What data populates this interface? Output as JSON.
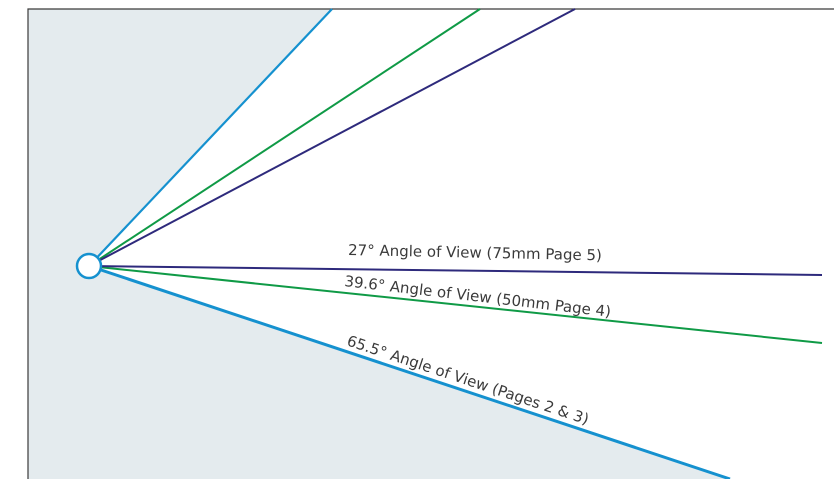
{
  "diagram": {
    "colors": {
      "background_region": "#e4ebee",
      "frame": "#3a3a3a",
      "angle_65": "#1591cf",
      "angle_39": "#0f9a46",
      "angle_27": "#2e2a7c",
      "text": "#3a3a3a"
    },
    "labels": {
      "angle_27": "27° Angle of View (75mm Page 5)",
      "angle_39": "39.6° Angle of View (50mm Page 4)",
      "angle_65": "65.5° Angle of View (Pages 2 & 3)"
    }
  }
}
